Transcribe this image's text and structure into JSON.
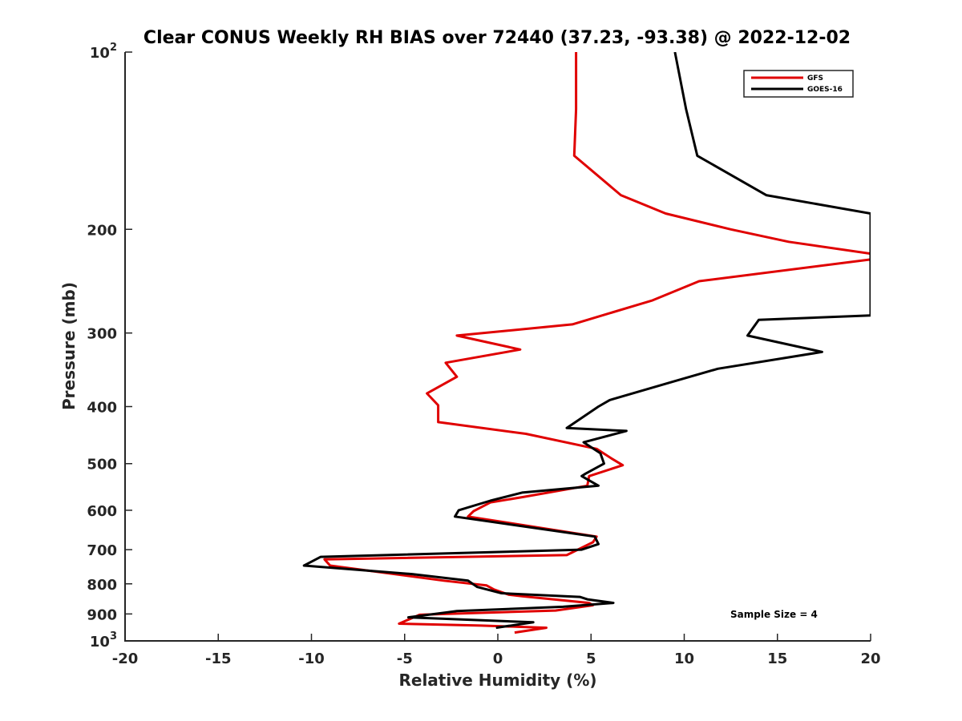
{
  "chart_data": {
    "type": "line",
    "title": "Clear CONUS Weekly RH BIAS over 72440 (37.23, -93.38) @ 2022-12-02",
    "xlabel": "Relative Humidity (%)",
    "ylabel": "Pressure (mb)",
    "xlim": [
      -20,
      20
    ],
    "ylim": [
      100,
      1000
    ],
    "y_scale": "log",
    "y_reversed": true,
    "xticks": [
      -20,
      -15,
      -10,
      -5,
      0,
      5,
      10,
      15,
      20
    ],
    "xtick_labels": [
      "-20",
      "-15",
      "-10",
      "-5",
      "0",
      "5",
      "10",
      "15",
      "20"
    ],
    "yticks": [
      {
        "value": 100,
        "base": "10",
        "exp": "2"
      },
      {
        "value": 200,
        "label": "200"
      },
      {
        "value": 300,
        "label": "300"
      },
      {
        "value": 400,
        "label": "400"
      },
      {
        "value": 500,
        "label": "500"
      },
      {
        "value": 600,
        "label": "600"
      },
      {
        "value": 700,
        "label": "700"
      },
      {
        "value": 800,
        "label": "800"
      },
      {
        "value": 900,
        "label": "900"
      },
      {
        "value": 1000,
        "base": "10",
        "exp": "3"
      }
    ],
    "legend_position": "top-right",
    "annotation": "Sample Size = 4",
    "series": [
      {
        "name": "GFS",
        "color": "#e00000",
        "points": [
          [
            4.2,
            100
          ],
          [
            4.2,
            125
          ],
          [
            4.1,
            150
          ],
          [
            6.6,
            175
          ],
          [
            9.0,
            188
          ],
          [
            12.5,
            200
          ],
          [
            15.6,
            210
          ],
          [
            20,
            220
          ],
          [
            20,
            225
          ],
          [
            10.8,
            245
          ],
          [
            8.3,
            264
          ],
          [
            4.0,
            290
          ],
          [
            -2.2,
            303
          ],
          [
            1.2,
            320
          ],
          [
            -2.8,
            337
          ],
          [
            -2.2,
            356
          ],
          [
            -3.8,
            380
          ],
          [
            -3.2,
            398
          ],
          [
            -3.2,
            425
          ],
          [
            1.5,
            445
          ],
          [
            5.3,
            472
          ],
          [
            6.1,
            490
          ],
          [
            6.7,
            503
          ],
          [
            4.9,
            525
          ],
          [
            4.8,
            545
          ],
          [
            1.3,
            570
          ],
          [
            -0.4,
            582
          ],
          [
            -1.3,
            602
          ],
          [
            -1.6,
            615
          ],
          [
            5.3,
            665
          ],
          [
            5.1,
            680
          ],
          [
            3.7,
            715
          ],
          [
            -9.3,
            727
          ],
          [
            -9.0,
            745
          ],
          [
            -2.9,
            790
          ],
          [
            -0.6,
            805
          ],
          [
            -0.2,
            818
          ],
          [
            0.6,
            835
          ],
          [
            1.3,
            840
          ],
          [
            4.9,
            862
          ],
          [
            5.1,
            870
          ],
          [
            3.1,
            888
          ],
          [
            -4.2,
            903
          ],
          [
            -5.3,
            935
          ],
          [
            -0.9,
            942
          ],
          [
            2.6,
            950
          ],
          [
            0.9,
            968
          ]
        ]
      },
      {
        "name": "GOES-16",
        "color": "#000000",
        "points": [
          [
            9.5,
            100
          ],
          [
            10.1,
            125
          ],
          [
            10.7,
            150
          ],
          [
            14.4,
            175
          ],
          [
            20,
            188
          ],
          [
            20,
            280
          ],
          [
            14.0,
            285
          ],
          [
            13.4,
            303
          ],
          [
            17.4,
            323
          ],
          [
            11.8,
            345
          ],
          [
            9.5,
            362
          ],
          [
            6.0,
            390
          ],
          [
            5.4,
            400
          ],
          [
            3.7,
            435
          ],
          [
            6.9,
            440
          ],
          [
            4.6,
            460
          ],
          [
            5.5,
            480
          ],
          [
            5.7,
            500
          ],
          [
            4.7,
            520
          ],
          [
            4.5,
            525
          ],
          [
            5.4,
            545
          ],
          [
            1.3,
            560
          ],
          [
            -0.4,
            578
          ],
          [
            -2.1,
            600
          ],
          [
            -2.3,
            615
          ],
          [
            5.2,
            665
          ],
          [
            5.4,
            685
          ],
          [
            4.5,
            700
          ],
          [
            -9.5,
            720
          ],
          [
            -10.4,
            745
          ],
          [
            -4.6,
            770
          ],
          [
            -1.6,
            790
          ],
          [
            -1.1,
            810
          ],
          [
            0.2,
            830
          ],
          [
            4.4,
            842
          ],
          [
            4.8,
            850
          ],
          [
            6.2,
            862
          ],
          [
            3.5,
            875
          ],
          [
            -2.2,
            890
          ],
          [
            -4.8,
            912
          ],
          [
            1.9,
            930
          ],
          [
            -0.1,
            950
          ]
        ]
      }
    ]
  }
}
